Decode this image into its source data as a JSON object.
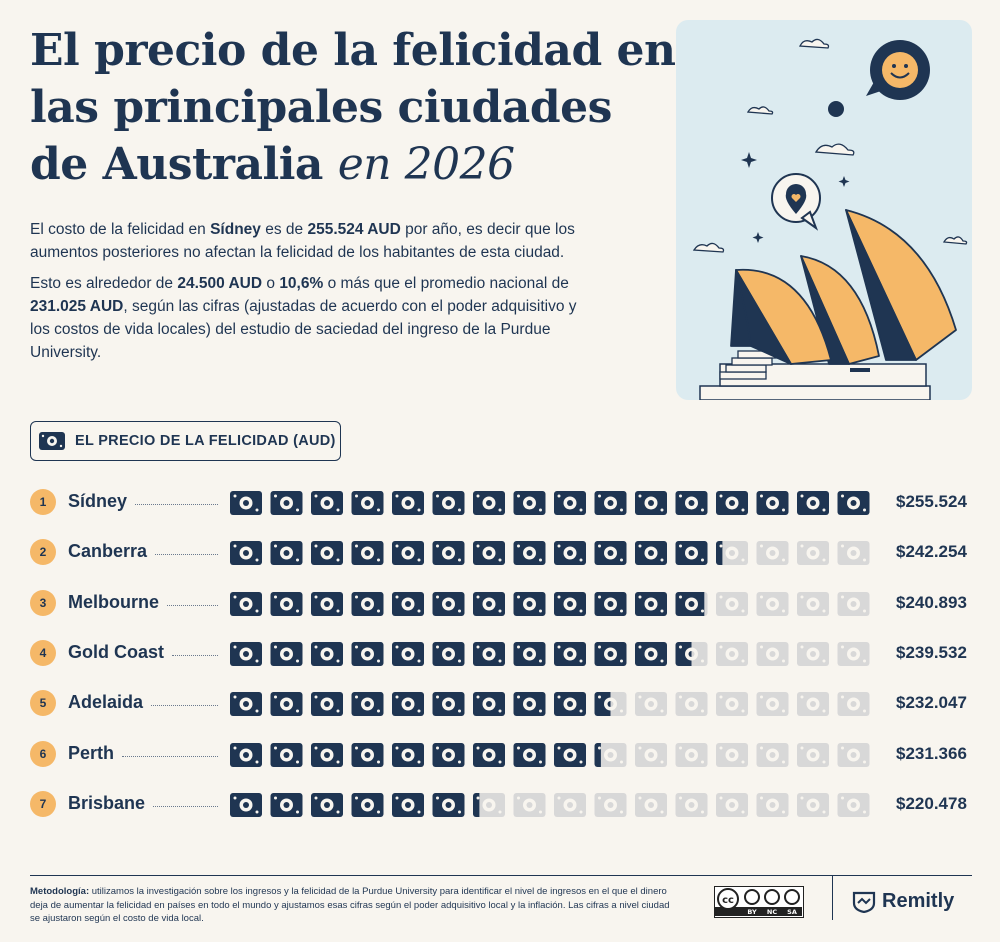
{
  "title": {
    "line1": "El precio de la felicidad en",
    "line2": "las principales ciudades",
    "line3": "de Australia",
    "line3_italic": "en 2026"
  },
  "intro": {
    "p1_a": "El costo de la felicidad en ",
    "p1_city": "Sídney",
    "p1_b": " es de ",
    "p1_value": "255.524 AUD",
    "p1_c": " por año, es decir que los aumentos posteriores no afectan la felicidad de los habitantes de esta ciudad.",
    "p2_a": "Esto es alrededor de ",
    "p2_diff": "24.500 AUD",
    "p2_b": " o ",
    "p2_pct": "10,6%",
    "p2_c": " o más que el promedio nacional de ",
    "p2_avg": "231.025 AUD",
    "p2_d": ", según las cifras (ajustadas de acuerdo con el poder adquisitivo y los costos de vida locales) del estudio de saciedad del ingreso de la Purdue University."
  },
  "legend": {
    "icon": "money-bill-icon",
    "label": "EL PRECIO DE LA FELICIDAD (AUD)"
  },
  "chart_data": {
    "type": "bar",
    "title": "EL PRECIO DE LA FELICIDAD (AUD)",
    "categories": [
      "Sídney",
      "Canberra",
      "Melbourne",
      "Gold Coast",
      "Adelaida",
      "Perth",
      "Brisbane"
    ],
    "ranks": [
      "1",
      "2",
      "3",
      "4",
      "5",
      "6",
      "7"
    ],
    "values": [
      255524,
      242254,
      240893,
      239532,
      232047,
      231366,
      220478
    ],
    "value_labels": [
      "$255.524",
      "$242.254",
      "$240.893",
      "$239.532",
      "$232.047",
      "$231.366",
      "$220.478"
    ],
    "units": 16,
    "bills_filled": [
      16,
      12.2,
      11.9,
      11.5,
      9.5,
      9.2,
      6.2
    ]
  },
  "colors": {
    "navy": "#1f3552",
    "orange": "#f5b868",
    "grey": "#d8d8d8",
    "background": "#f8f5ef",
    "sky": "#dcebf0"
  },
  "footer": {
    "method_label": "Metodología:",
    "method_text": " utilizamos la investigación sobre los ingresos y la felicidad de la Purdue University para identificar el nivel de ingresos en el que el dinero deja de aumentar la felicidad en países en todo el mundo y ajustamos esas cifras según el poder adquisitivo local y la inflación. Las cifras a nivel ciudad se ajustaron según el costo de vida local.",
    "license": {
      "by": "BY",
      "nc": "NC",
      "sa": "SA"
    },
    "brand": "Remitly"
  }
}
